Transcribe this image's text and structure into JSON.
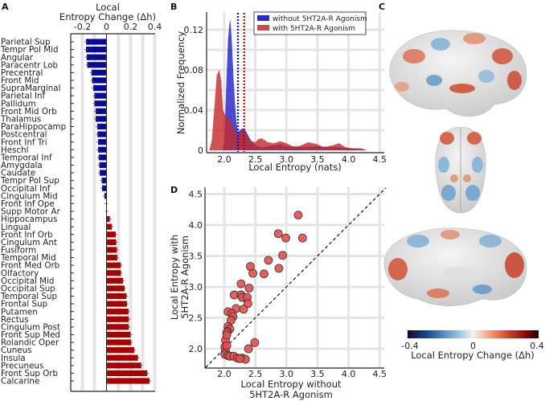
{
  "panel_labels": {
    "a": "A",
    "b": "B",
    "c": "C",
    "d": "D"
  },
  "colors": {
    "decrease": "#0a0a9a",
    "increase": "#a80000",
    "without": "#2a2acc",
    "with": "#c42828",
    "scatter": "#e85050"
  },
  "chart_data": [
    {
      "panel": "A",
      "type": "bar",
      "orientation": "horizontal",
      "title": [
        "Local",
        "Entropy Change (Δh)"
      ],
      "xlim": [
        -0.3,
        0.4
      ],
      "xticks": [
        -0.2,
        0,
        0.2,
        0.4
      ],
      "xtick_labels": [
        "-0.2",
        "0",
        "0.2",
        "0.4"
      ],
      "categories": [
        "Parietal Sup",
        "Tempr Pol Mid",
        "Angular",
        "Paracentr Lob",
        "Precentral",
        "Front Mid",
        "SupraMarginal",
        "Parietal Inf",
        "Pallidum",
        "Front Mid Orb",
        "Thalamus",
        "ParaHippocamp",
        "Postcentral",
        "Front Inf Tri",
        "Heschl",
        "Temporal Inf",
        "Amygdala",
        "Caudate",
        "Tempr Pol Sup",
        "Occipital Inf",
        "Cingulum Mid",
        "Front Inf Ope",
        "Supp Motor Ar",
        "Hippocampus",
        "Lingual",
        "Front Inf Orb",
        "Cingulum Ant",
        "Fusiform",
        "Temporal Mid",
        "Front Med Orb",
        "Olfactory",
        "Occipital Mid",
        "Occipital Sup",
        "Temporal Sup",
        "Frontal Sup",
        "Putamen",
        "Rectus",
        "Cingulum Post",
        "Front Sup Med",
        "Rolandic Oper",
        "Cuneus",
        "Insula",
        "Precuneus",
        "Front Sup Orb",
        "Calcarine"
      ],
      "values": [
        -0.17,
        -0.17,
        -0.165,
        -0.16,
        -0.125,
        -0.12,
        -0.11,
        -0.1,
        -0.1,
        -0.09,
        -0.09,
        -0.077,
        -0.075,
        -0.07,
        -0.07,
        -0.065,
        -0.06,
        -0.057,
        -0.04,
        -0.037,
        -0.017,
        -0.003,
        0.002,
        0.028,
        0.045,
        0.077,
        0.081,
        0.086,
        0.09,
        0.119,
        0.12,
        0.137,
        0.15,
        0.166,
        0.17,
        0.183,
        0.185,
        0.185,
        0.2,
        0.204,
        0.23,
        0.261,
        0.288,
        0.339,
        0.357
      ]
    },
    {
      "panel": "B",
      "type": "area",
      "xlabel": "Local Entropy (nats)",
      "ylabel": "Normalized Frequency",
      "xlim": [
        1.72,
        4.58
      ],
      "ylim": [
        0,
        0.138
      ],
      "xticks": [
        2.0,
        2.5,
        3.0,
        3.5,
        4.0,
        4.5
      ],
      "xtick_labels": [
        "2.0",
        "2.5",
        "3.0",
        "3.5",
        "4.0",
        "4.5"
      ],
      "yticks": [
        0,
        0.04,
        0.08,
        0.12
      ],
      "ytick_labels": [
        "0",
        "0.04",
        "0.08",
        "0.12"
      ],
      "legend_position": "top-right",
      "series": [
        {
          "name": "without 5HT2A-R Agonism",
          "mean": 2.22,
          "x": [
            1.98,
            2.0,
            2.03,
            2.06,
            2.09,
            2.1,
            2.12,
            2.15,
            2.18,
            2.2,
            2.22,
            2.25,
            2.3,
            2.35,
            2.4,
            2.45,
            2.5,
            2.6,
            2.8,
            2.9,
            3.0,
            3.2,
            3.5,
            3.8,
            4.0,
            4.2,
            4.3
          ],
          "y": [
            0,
            0.01,
            0.06,
            0.11,
            0.13,
            0.128,
            0.11,
            0.07,
            0.04,
            0.025,
            0.018,
            0.02,
            0.022,
            0.019,
            0.013,
            0.008,
            0.005,
            0.003,
            0.005,
            0.006,
            0.004,
            0.003,
            0.004,
            0.003,
            0.002,
            0.001,
            0
          ]
        },
        {
          "name": "with 5HT2A-R Agonism",
          "mean": 2.32,
          "x": [
            1.76,
            1.8,
            1.85,
            1.88,
            1.92,
            1.95,
            1.98,
            2.02,
            2.06,
            2.1,
            2.15,
            2.2,
            2.25,
            2.3,
            2.35,
            2.4,
            2.5,
            2.55,
            2.6,
            2.7,
            2.8,
            2.9,
            3.0,
            3.1,
            3.2,
            3.35,
            3.5,
            3.6,
            3.75,
            3.85,
            3.95,
            4.05,
            4.2,
            4.3
          ],
          "y": [
            0,
            0.01,
            0.05,
            0.075,
            0.08,
            0.07,
            0.04,
            0.034,
            0.033,
            0.03,
            0.022,
            0.015,
            0.018,
            0.02,
            0.016,
            0.01,
            0.008,
            0.011,
            0.012,
            0.008,
            0.007,
            0.009,
            0.007,
            0.004,
            0.004,
            0.008,
            0.006,
            0.003,
            0.005,
            0.007,
            0.003,
            0.002,
            0.002,
            0
          ]
        }
      ]
    },
    {
      "panel": "D",
      "type": "scatter",
      "xlabel": [
        "Local Entropy without",
        "5HT2A-R Agonism"
      ],
      "ylabel": [
        "Local Entropy with",
        "5HT2A-R Agonism"
      ],
      "xlim": [
        1.7,
        4.6
      ],
      "ylim": [
        1.69,
        4.6
      ],
      "xticks": [
        2.0,
        2.5,
        3.0,
        3.5,
        4.0,
        4.5
      ],
      "xtick_labels": [
        "2.0",
        "2.5",
        "3.0",
        "3.5",
        "4.0",
        "4.5"
      ],
      "yticks": [
        2.0,
        2.5,
        3.0,
        3.5,
        4.0,
        4.5
      ],
      "ytick_labels": [
        "2.0",
        "2.5",
        "3.0",
        "3.5",
        "4.0",
        "4.5"
      ],
      "reference_line": "y = x",
      "x": [
        3.19,
        2.87,
        2.99,
        3.26,
        2.94,
        2.71,
        2.88,
        2.42,
        2.46,
        2.64,
        2.27,
        2.4,
        2.16,
        2.27,
        2.29,
        2.37,
        2.38,
        2.19,
        2.31,
        2.06,
        2.12,
        2.14,
        2.11,
        2.06,
        2.09,
        2.05,
        2.04,
        2.02,
        2.49,
        2.39,
        2.01,
        2.02,
        2.01,
        2.06,
        2.09,
        2.15,
        2.21,
        2.29,
        2.34,
        2.25,
        2.04,
        2.04
      ],
      "y": [
        4.16,
        3.86,
        3.79,
        3.79,
        3.51,
        3.43,
        3.3,
        3.33,
        3.22,
        3.21,
        3.05,
        2.98,
        2.87,
        2.87,
        2.83,
        2.83,
        2.73,
        2.65,
        2.64,
        2.6,
        2.57,
        2.52,
        2.46,
        2.36,
        2.32,
        2.28,
        2.26,
        2.14,
        2.1,
        2.0,
        2.03,
        1.96,
        1.91,
        1.89,
        1.88,
        1.88,
        1.85,
        1.85,
        1.83,
        1.84,
        2.05,
        2.22
      ]
    },
    {
      "panel": "C",
      "type": "colorbar",
      "label": "Local Entropy Change (Δh)",
      "range": [
        -0.4,
        0.4
      ],
      "tick_labels": [
        "-0.4",
        "0",
        "0.4"
      ],
      "colormap": [
        "#0b0b2e",
        "#1c4f8f",
        "#86b5d8",
        "#f2f2f2",
        "#f4a582",
        "#d2462c",
        "#8a0a0a",
        "#1a0000"
      ]
    }
  ]
}
